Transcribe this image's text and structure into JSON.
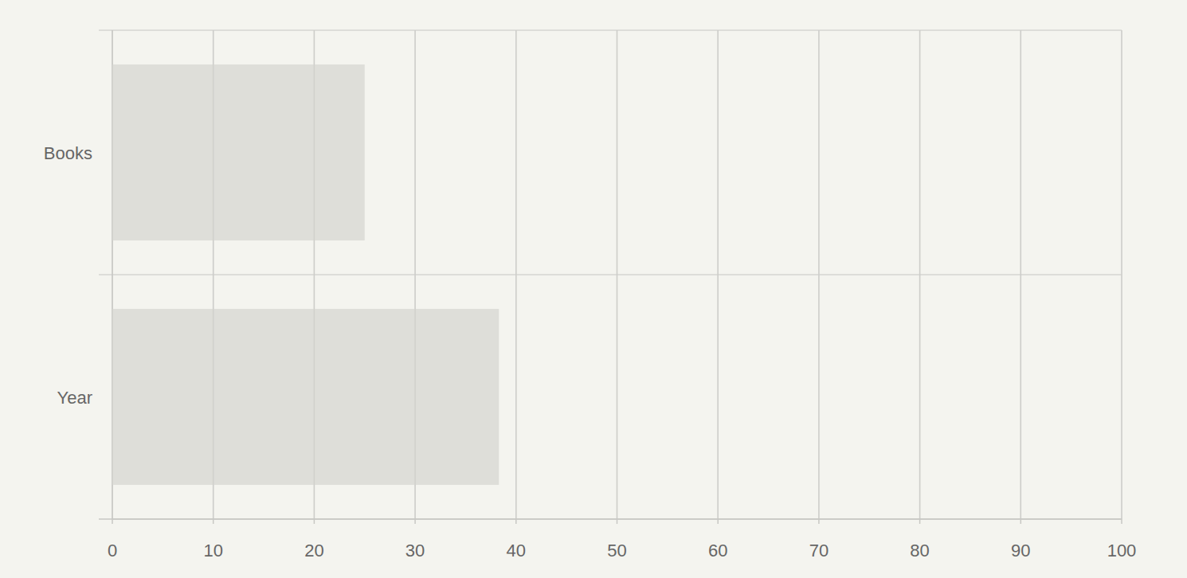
{
  "chart_data": {
    "type": "bar",
    "orientation": "horizontal",
    "categories": [
      "Books",
      "Year"
    ],
    "values": [
      25,
      38.3
    ],
    "color": "#dcdcd7",
    "xlim": [
      0,
      100
    ],
    "xticks": [
      0,
      10,
      20,
      30,
      40,
      50,
      60,
      70,
      80,
      90,
      100
    ],
    "grid": true
  }
}
